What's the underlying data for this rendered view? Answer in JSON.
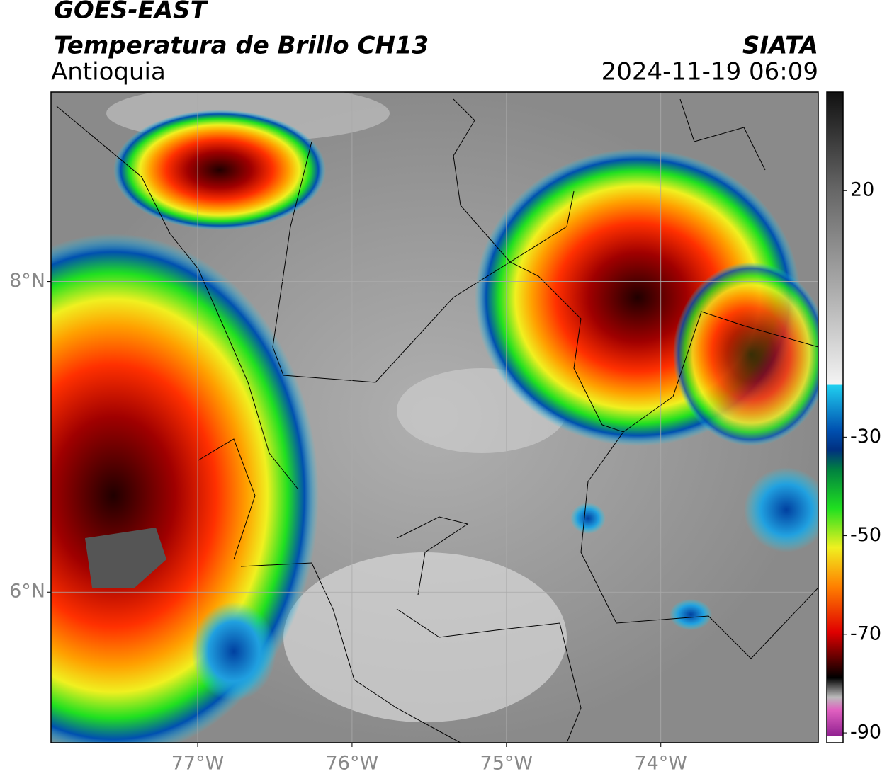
{
  "header": {
    "title": "GOES-EAST",
    "subtitle": "Temperatura de Brillo CH13",
    "region": "Antioquia",
    "source": "SIATA",
    "datetime": "2024-11-19 06:09"
  },
  "map": {
    "xlim": [
      -77.95,
      -72.98
    ],
    "ylim": [
      5.03,
      9.22
    ],
    "xticks": [
      {
        "value": -77,
        "label": "77°W"
      },
      {
        "value": -76,
        "label": "76°W"
      },
      {
        "value": -75,
        "label": "75°W"
      },
      {
        "value": -74,
        "label": "74°W"
      }
    ],
    "yticks": [
      {
        "value": 8,
        "label": "8°N"
      },
      {
        "value": 6,
        "label": "6°N"
      }
    ],
    "grid": true
  },
  "colorbar": {
    "clim": [
      -92,
      40
    ],
    "ticks": [
      20,
      -30,
      -50,
      -70,
      -90
    ]
  }
}
